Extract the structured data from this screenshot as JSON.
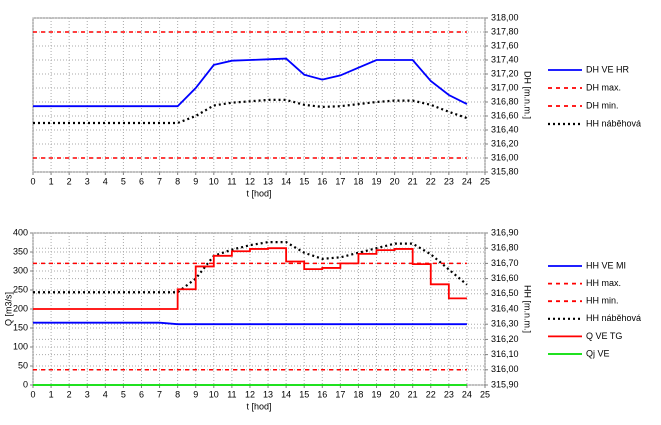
{
  "chart_data": [
    {
      "type": "line",
      "x": [
        0,
        1,
        2,
        3,
        4,
        5,
        6,
        7,
        8,
        9,
        10,
        11,
        12,
        13,
        14,
        15,
        16,
        17,
        18,
        19,
        20,
        21,
        22,
        23,
        24
      ],
      "xlim": [
        0,
        25
      ],
      "xticks": [
        0,
        1,
        2,
        3,
        4,
        5,
        6,
        7,
        8,
        9,
        10,
        11,
        12,
        13,
        14,
        15,
        16,
        17,
        18,
        19,
        20,
        21,
        22,
        23,
        24,
        25
      ],
      "xlabel": "t [hod]",
      "ylabel": "DH [m.n.m.]",
      "y_axis_side": "right",
      "ylim": [
        315.8,
        318.0
      ],
      "yticks": [
        {
          "value": 315.8,
          "label": "315,80"
        },
        {
          "value": 316.0,
          "label": "316,00"
        },
        {
          "value": 316.2,
          "label": "316,20"
        },
        {
          "value": 316.4,
          "label": "316,40"
        },
        {
          "value": 316.6,
          "label": "316,60"
        },
        {
          "value": 316.8,
          "label": "316,80"
        },
        {
          "value": 317.0,
          "label": "317,00"
        },
        {
          "value": 317.2,
          "label": "317,20"
        },
        {
          "value": 317.4,
          "label": "317,40"
        },
        {
          "value": 317.6,
          "label": "317,60"
        },
        {
          "value": 317.8,
          "label": "317,80"
        },
        {
          "value": 318.0,
          "label": "318,00"
        }
      ],
      "grid": true,
      "series": [
        {
          "name": "DH VE HR",
          "color": "#0000ff",
          "style": "solid",
          "values": [
            316.74,
            316.74,
            316.74,
            316.74,
            316.74,
            316.74,
            316.74,
            316.74,
            316.74,
            317.0,
            317.33,
            317.39,
            317.4,
            317.41,
            317.42,
            317.19,
            317.12,
            317.18,
            317.29,
            317.4,
            317.4,
            317.4,
            317.1,
            316.9,
            316.77
          ]
        },
        {
          "name": "DH max.",
          "color": "#ff0000",
          "style": "dashed",
          "values": [
            317.8,
            317.8,
            317.8,
            317.8,
            317.8,
            317.8,
            317.8,
            317.8,
            317.8,
            317.8,
            317.8,
            317.8,
            317.8,
            317.8,
            317.8,
            317.8,
            317.8,
            317.8,
            317.8,
            317.8,
            317.8,
            317.8,
            317.8,
            317.8,
            317.8
          ]
        },
        {
          "name": "DH min.",
          "color": "#ff0000",
          "style": "dashed",
          "values": [
            316.0,
            316.0,
            316.0,
            316.0,
            316.0,
            316.0,
            316.0,
            316.0,
            316.0,
            316.0,
            316.0,
            316.0,
            316.0,
            316.0,
            316.0,
            316.0,
            316.0,
            316.0,
            316.0,
            316.0,
            316.0,
            316.0,
            316.0,
            316.0,
            316.0
          ]
        },
        {
          "name": "HH náběhová",
          "color": "#000000",
          "style": "dotted",
          "values": [
            316.5,
            316.5,
            316.5,
            316.5,
            316.5,
            316.5,
            316.5,
            316.5,
            316.5,
            316.6,
            316.75,
            316.79,
            316.81,
            316.83,
            316.83,
            316.76,
            316.73,
            316.74,
            316.77,
            316.8,
            316.82,
            316.82,
            316.76,
            316.66,
            316.57
          ]
        }
      ]
    },
    {
      "type": "line",
      "x": [
        0,
        1,
        2,
        3,
        4,
        5,
        6,
        7,
        8,
        9,
        10,
        11,
        12,
        13,
        14,
        15,
        16,
        17,
        18,
        19,
        20,
        21,
        22,
        23,
        24
      ],
      "xlim": [
        0,
        25
      ],
      "xticks": [
        0,
        1,
        2,
        3,
        4,
        5,
        6,
        7,
        8,
        9,
        10,
        11,
        12,
        13,
        14,
        15,
        16,
        17,
        18,
        19,
        20,
        21,
        22,
        23,
        24,
        25
      ],
      "xlabel": "t [hod]",
      "ylabel": "Q [m3/s]",
      "y2label": "HH [m.n.m.]",
      "ylim": [
        0,
        400
      ],
      "yticks": [
        0,
        50,
        100,
        150,
        200,
        250,
        300,
        350,
        400
      ],
      "y2lim": [
        315.9,
        316.9
      ],
      "y2ticks": [
        {
          "value": 315.9,
          "label": "315,90"
        },
        {
          "value": 316.0,
          "label": "316,00"
        },
        {
          "value": 316.1,
          "label": "316,10"
        },
        {
          "value": 316.2,
          "label": "316,20"
        },
        {
          "value": 316.3,
          "label": "316,30"
        },
        {
          "value": 316.4,
          "label": "316,40"
        },
        {
          "value": 316.5,
          "label": "316,50"
        },
        {
          "value": 316.6,
          "label": "316,60"
        },
        {
          "value": 316.7,
          "label": "316,70"
        },
        {
          "value": 316.8,
          "label": "316,80"
        },
        {
          "value": 316.9,
          "label": "316,90"
        }
      ],
      "grid": true,
      "series": [
        {
          "name": "HH VE MI",
          "color": "#0000ff",
          "style": "solid",
          "axis": "y2",
          "values": [
            316.31,
            316.31,
            316.31,
            316.31,
            316.31,
            316.31,
            316.31,
            316.31,
            316.3,
            316.3,
            316.3,
            316.3,
            316.3,
            316.3,
            316.3,
            316.3,
            316.3,
            316.3,
            316.3,
            316.3,
            316.3,
            316.3,
            316.3,
            316.3,
            316.3
          ]
        },
        {
          "name": "HH max.",
          "color": "#ff0000",
          "style": "dashed",
          "axis": "y2",
          "values": [
            316.7,
            316.7,
            316.7,
            316.7,
            316.7,
            316.7,
            316.7,
            316.7,
            316.7,
            316.7,
            316.7,
            316.7,
            316.7,
            316.7,
            316.7,
            316.7,
            316.7,
            316.7,
            316.7,
            316.7,
            316.7,
            316.7,
            316.7,
            316.7,
            316.7
          ]
        },
        {
          "name": "HH min.",
          "color": "#ff0000",
          "style": "dashed",
          "axis": "y2",
          "values": [
            316.0,
            316.0,
            316.0,
            316.0,
            316.0,
            316.0,
            316.0,
            316.0,
            316.0,
            316.0,
            316.0,
            316.0,
            316.0,
            316.0,
            316.0,
            316.0,
            316.0,
            316.0,
            316.0,
            316.0,
            316.0,
            316.0,
            316.0,
            316.0,
            316.0
          ]
        },
        {
          "name": "HH náběhová",
          "color": "#000000",
          "style": "dotted",
          "axis": "y2",
          "values": [
            316.51,
            316.51,
            316.51,
            316.51,
            316.51,
            316.51,
            316.51,
            316.51,
            316.51,
            316.6,
            316.75,
            316.79,
            316.82,
            316.84,
            316.84,
            316.77,
            316.73,
            316.74,
            316.77,
            316.8,
            316.83,
            316.83,
            316.76,
            316.66,
            316.56
          ]
        },
        {
          "name": "Q VE TG",
          "color": "#ff0000",
          "style": "solid",
          "step": true,
          "values": [
            200,
            200,
            200,
            200,
            200,
            200,
            200,
            200,
            252,
            312,
            340,
            352,
            358,
            360,
            325,
            305,
            308,
            320,
            345,
            355,
            358,
            318,
            265,
            228,
            228
          ]
        },
        {
          "name": "Qj VE",
          "color": "#00dd00",
          "style": "solid",
          "values": [
            0,
            0,
            0,
            0,
            0,
            0,
            0,
            0,
            0,
            0,
            0,
            0,
            0,
            0,
            0,
            0,
            0,
            0,
            0,
            0,
            0,
            0,
            0,
            0,
            0
          ]
        }
      ]
    }
  ]
}
